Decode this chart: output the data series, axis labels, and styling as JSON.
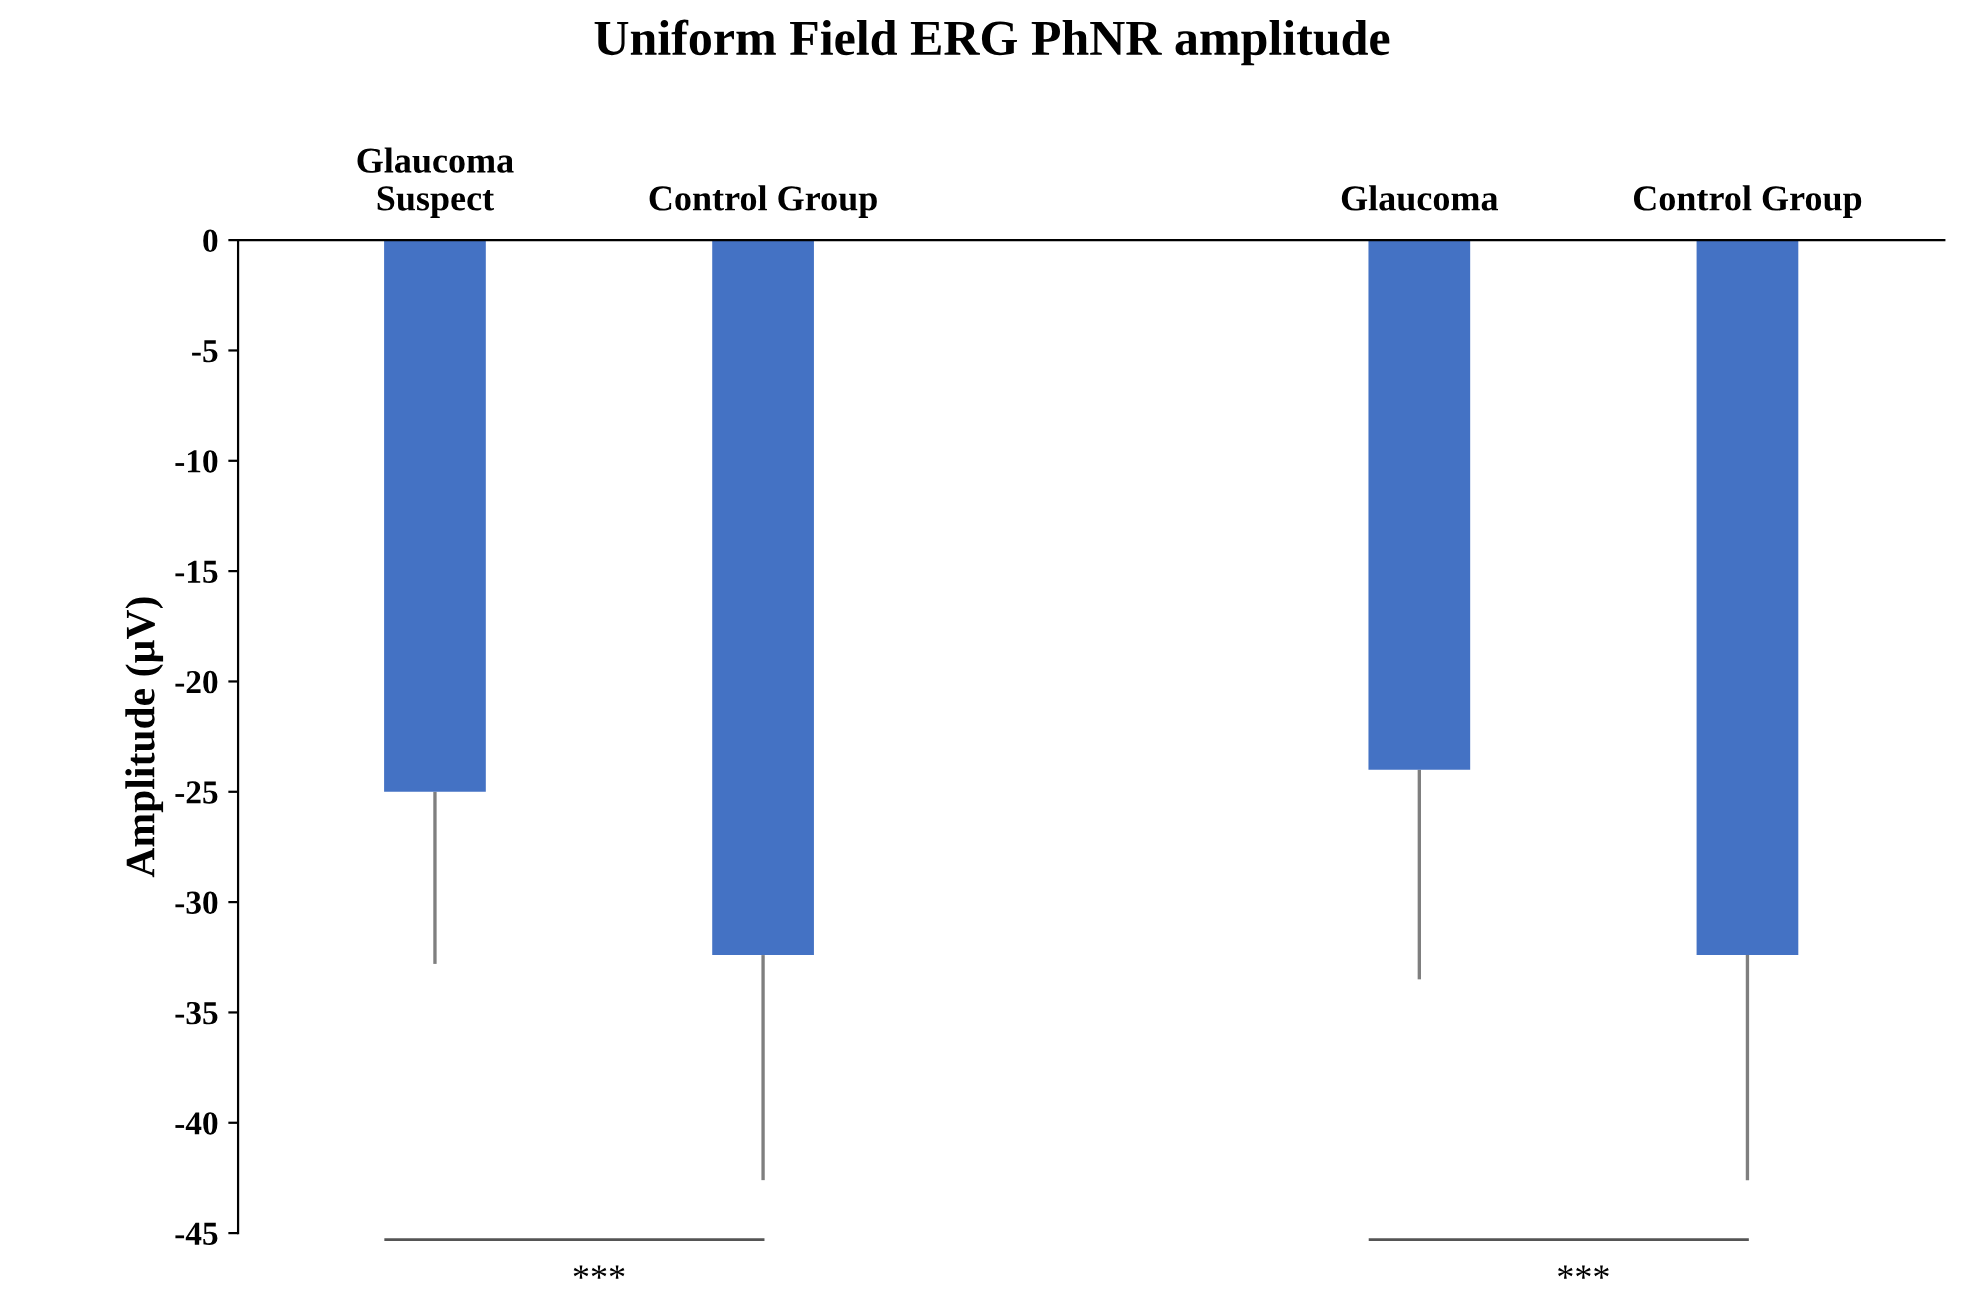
{
  "chart_data": {
    "type": "bar",
    "title": "Uniform Field ERG PhNR amplitude",
    "ylabel": "Amplitude (µV)",
    "categories": [
      "Glaucoma\nSuspect",
      "Control Group",
      null,
      "Glaucoma",
      "Control Group"
    ],
    "values": [
      -25.0,
      -32.4,
      null,
      -24.0,
      -32.4
    ],
    "errors": [
      [
        -32.8,
        -25.0
      ],
      [
        -42.6,
        -32.4
      ],
      null,
      [
        -33.5,
        -24.0
      ],
      [
        -42.6,
        -32.4
      ]
    ],
    "color": "#4472c4",
    "ylim": [
      -45,
      0
    ],
    "yticks": [
      -45,
      -40,
      -35,
      -30,
      -25,
      -20,
      -15,
      -10,
      -5,
      0
    ],
    "grid": false,
    "annotations": [
      "***",
      "***"
    ]
  }
}
